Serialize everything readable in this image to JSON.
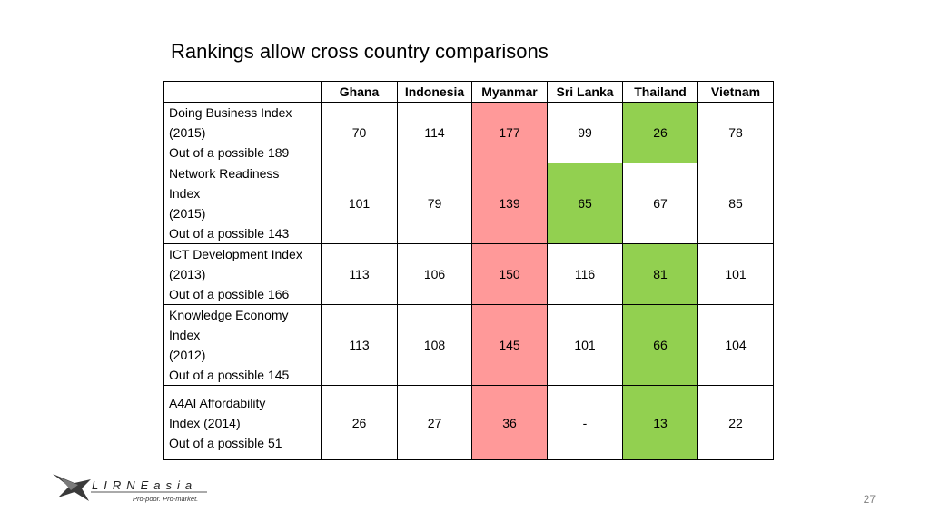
{
  "title": "Rankings allow cross country comparisons",
  "table": {
    "headers": [
      "",
      "Ghana",
      "Indonesia",
      "Myanmar",
      "Sri Lanka",
      "Thailand",
      "Vietnam"
    ],
    "rows": [
      {
        "label": "Doing Business Index\n(2015)\nOut of a possible 189",
        "values": [
          "70",
          "114",
          "177",
          "99",
          "26",
          "78"
        ],
        "highlights": [
          "",
          "",
          "red",
          "",
          "green",
          ""
        ]
      },
      {
        "label": "Network Readiness\nIndex\n(2015)\nOut of a possible 143",
        "values": [
          "101",
          "79",
          "139",
          "65",
          "67",
          "85"
        ],
        "highlights": [
          "",
          "",
          "red",
          "green",
          "",
          ""
        ]
      },
      {
        "label": "ICT Development Index\n(2013)\n Out of a possible 166",
        "values": [
          "113",
          "106",
          "150",
          "116",
          "81",
          "101"
        ],
        "highlights": [
          "",
          "",
          "red",
          "",
          "green",
          ""
        ]
      },
      {
        "label": "Knowledge Economy\nIndex\n (2012)\nOut of a possible 145",
        "values": [
          "113",
          "108",
          "145",
          "101",
          "66",
          "104"
        ],
        "highlights": [
          "",
          "",
          "red",
          "",
          "green",
          ""
        ]
      },
      {
        "label": "A4AI Affordability\nIndex (2014)\nOut of a possible 51",
        "values": [
          "26",
          "27",
          "36",
          "-",
          "13",
          "22"
        ],
        "highlights": [
          "",
          "",
          "red",
          "",
          "green",
          ""
        ]
      }
    ]
  },
  "colors": {
    "worst": "#ff9999",
    "best": "#92d050"
  },
  "logo": {
    "name": "LIRNEasia",
    "text": "LIRNEasia",
    "tagline": "Pro-poor. Pro-market."
  },
  "page_number": "27"
}
